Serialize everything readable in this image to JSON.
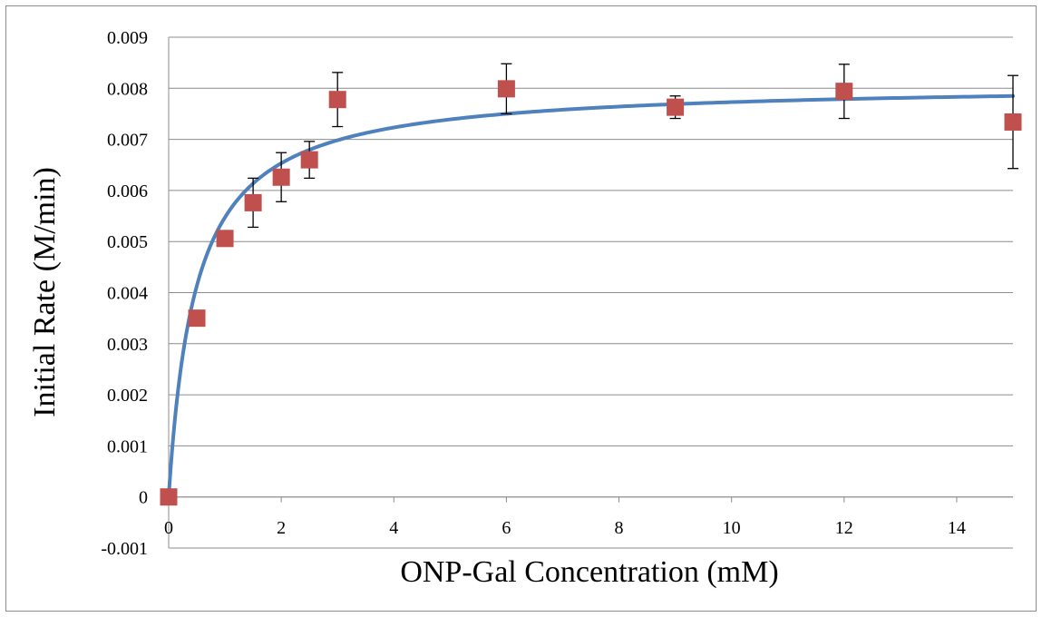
{
  "chart_data": {
    "type": "scatter",
    "xlabel": "ONP-Gal Concentration (mM)",
    "ylabel": "Initial Rate (M/min)",
    "xlim": [
      0,
      15
    ],
    "ylim": [
      -0.001,
      0.009
    ],
    "x_ticks": [
      "0",
      "2",
      "4",
      "6",
      "8",
      "10",
      "12",
      "14"
    ],
    "x_tick_values": [
      0,
      2,
      4,
      6,
      8,
      10,
      12,
      14
    ],
    "y_ticks": [
      "-0.001",
      "0",
      "0.001",
      "0.002",
      "0.003",
      "0.004",
      "0.005",
      "0.006",
      "0.007",
      "0.008",
      "0.009"
    ],
    "y_tick_values": [
      -0.001,
      0,
      0.001,
      0.002,
      0.003,
      0.004,
      0.005,
      0.006,
      0.007,
      0.008,
      0.009
    ],
    "grid": "horizontal",
    "points": [
      {
        "x": 0,
        "y": 0,
        "err": 5e-05
      },
      {
        "x": 0.5,
        "y": 0.0035,
        "err": 0.0
      },
      {
        "x": 1,
        "y": 0.00506,
        "err": 0.0
      },
      {
        "x": 1.5,
        "y": 0.00576,
        "err": 0.00048
      },
      {
        "x": 2,
        "y": 0.00626,
        "err": 0.00048
      },
      {
        "x": 2.5,
        "y": 0.0066,
        "err": 0.00036
      },
      {
        "x": 3,
        "y": 0.00778,
        "err": 0.00053
      },
      {
        "x": 6,
        "y": 0.00799,
        "err": 0.00049
      },
      {
        "x": 9,
        "y": 0.00763,
        "err": 0.00022
      },
      {
        "x": 12,
        "y": 0.00794,
        "err": 0.00053
      },
      {
        "x": 15,
        "y": 0.00734,
        "err": 0.00091
      }
    ],
    "fit": {
      "model": "michaelis-menten",
      "vmax": 0.0081,
      "km": 0.48,
      "x_range": [
        0,
        15
      ]
    },
    "colors": {
      "marker": "#C0504D",
      "fit_line": "#4F81BD",
      "error_bar": "#000000",
      "grid": "#8c8c8c"
    }
  }
}
